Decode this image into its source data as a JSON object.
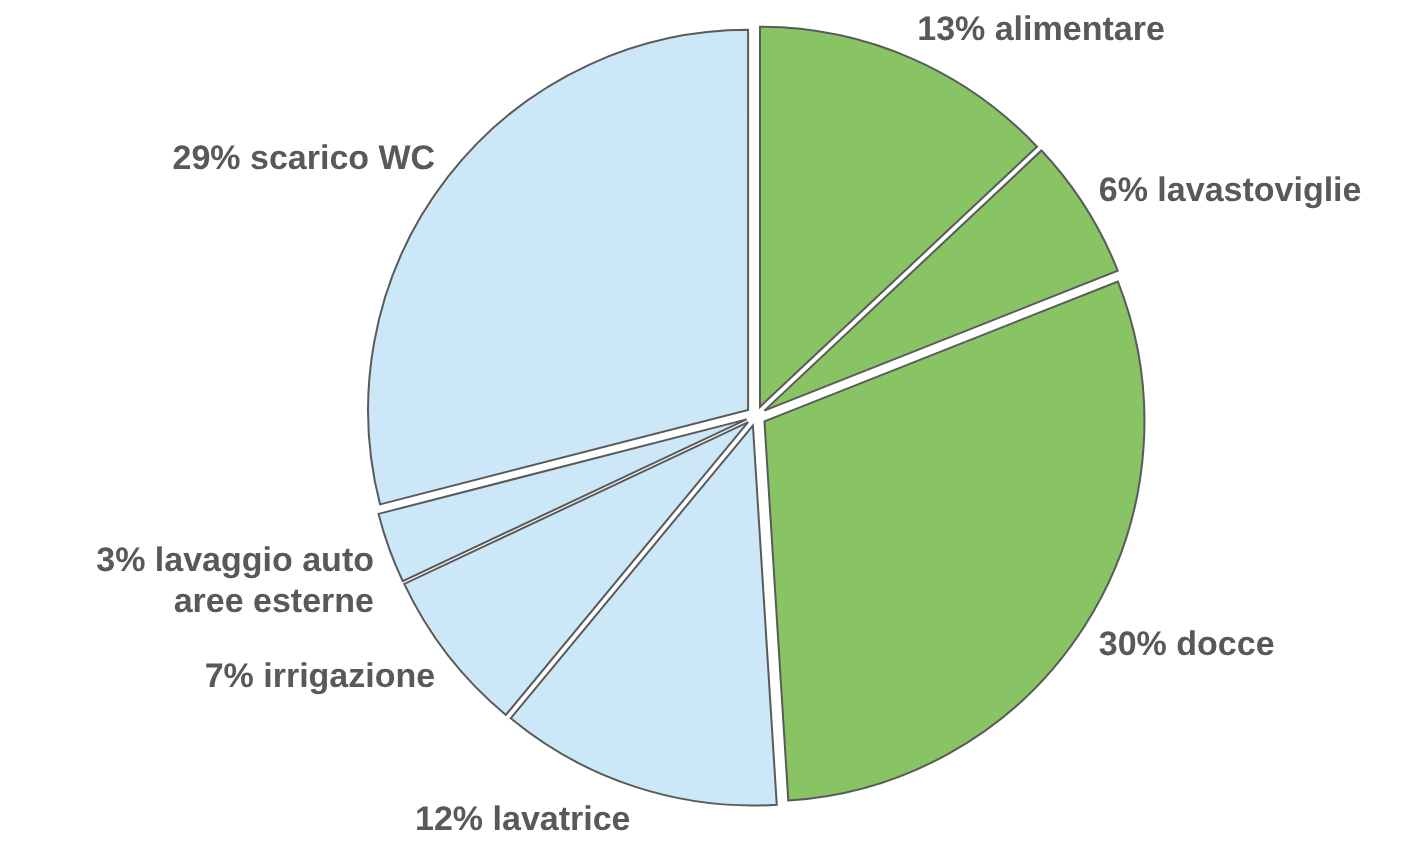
{
  "chart_data": {
    "type": "pie",
    "categories": [
      "alimentare",
      "lavastoviglie",
      "docce",
      "lavatrice",
      "irrigazione",
      "lavaggio auto aree esterne",
      "scarico WC"
    ],
    "values": [
      13,
      6,
      30,
      12,
      7,
      3,
      29
    ],
    "value_labels": [
      "13%",
      "6%",
      "30%",
      "12%",
      "7%",
      "3%",
      "29%"
    ],
    "colors": [
      "#88c463",
      "#88c463",
      "#88c463",
      "#cce8f8",
      "#cce8f8",
      "#cce8f8",
      "#cce8f8"
    ]
  }
}
